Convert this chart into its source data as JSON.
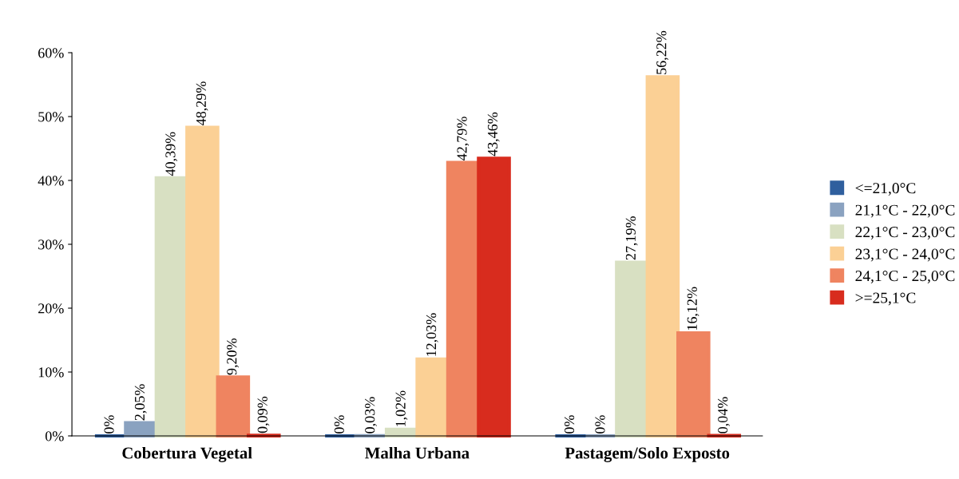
{
  "chart_data": {
    "type": "bar",
    "categories": [
      "Cobertura Vegetal",
      "Malha Urbana",
      "Pastagem/Solo Exposto"
    ],
    "series": [
      {
        "name": "<=21,0°C",
        "color": "#2f5f9e",
        "values": [
          0,
          0,
          0
        ],
        "value_labels": [
          "0%",
          "0%",
          "0%"
        ]
      },
      {
        "name": "21,1°C - 22,0°C",
        "color": "#8aa2c0",
        "values": [
          2.05,
          0.03,
          0
        ],
        "value_labels": [
          "2,05%",
          "0,03%",
          "0%"
        ]
      },
      {
        "name": "22,1°C - 23,0°C",
        "color": "#d8e0c2",
        "values": [
          40.39,
          1.02,
          27.19
        ],
        "value_labels": [
          "40,39%",
          "1,02%",
          "27,19%"
        ]
      },
      {
        "name": "23,1°C - 24,0°C",
        "color": "#fbd095",
        "values": [
          48.29,
          12.03,
          56.22
        ],
        "value_labels": [
          "48,29%",
          "12,03%",
          "56,22%"
        ]
      },
      {
        "name": "24,1°C - 25,0°C",
        "color": "#ef8460",
        "values": [
          9.2,
          42.79,
          16.12
        ],
        "value_labels": [
          "9,20%",
          "42,79%",
          "16,12%"
        ]
      },
      {
        "name": ">=25,1°C",
        "color": "#d82c1e",
        "values": [
          0.09,
          43.46,
          0.04
        ],
        "value_labels": [
          "0,09%",
          "43,46%",
          "0,04%"
        ]
      }
    ],
    "ylim": [
      0,
      60
    ],
    "yticks": [
      {
        "value": 0,
        "label": "0%"
      },
      {
        "value": 10,
        "label": "10%"
      },
      {
        "value": 20,
        "label": "20%"
      },
      {
        "value": 30,
        "label": "30%"
      },
      {
        "value": 40,
        "label": "40%"
      },
      {
        "value": 50,
        "label": "50%"
      },
      {
        "value": 60,
        "label": "60%"
      }
    ],
    "legend": "right",
    "grid": false
  }
}
